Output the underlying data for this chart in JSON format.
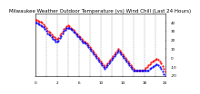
{
  "title": "Milwaukee Weather Outdoor Temperature (vs) Wind Chill (Last 24 Hours)",
  "bg_color": "#ffffff",
  "plot_bg": "#ffffff",
  "grid_color": "#888888",
  "ylim": [
    -20,
    50
  ],
  "yticks": [
    40,
    30,
    20,
    10,
    0,
    -10,
    -20
  ],
  "ytick_labels": [
    "40",
    "30",
    "20",
    "10",
    "0",
    "-10",
    "-20"
  ],
  "temp_color": "#ff0000",
  "chill_color": "#0000ff",
  "title_fontsize": 4.0,
  "axis_fontsize": 3.0,
  "marker_size": 1.2,
  "line_width": 0.5,
  "temp_data_x": [
    0,
    1,
    2,
    3,
    4,
    5,
    6,
    7,
    8,
    9,
    10,
    11,
    12,
    13,
    14,
    15,
    16,
    17,
    18,
    19,
    20,
    21,
    22,
    23,
    24,
    25,
    26,
    27,
    28,
    29,
    30,
    31,
    32,
    33,
    34,
    35,
    36,
    37,
    38,
    39,
    40,
    41,
    42,
    43,
    44,
    45,
    46,
    47,
    48,
    49,
    50,
    51,
    52,
    53,
    54,
    55,
    56,
    57,
    58,
    59,
    60,
    61,
    62,
    63,
    64,
    65,
    66,
    67,
    68,
    69,
    70,
    71,
    72,
    73,
    74,
    75,
    76,
    77,
    78,
    79,
    80,
    81,
    82,
    83,
    84,
    85,
    86,
    87,
    88,
    89,
    90,
    91,
    92,
    93,
    94,
    95
  ],
  "temp_data_y": [
    43,
    43,
    42,
    41,
    41,
    40,
    38,
    36,
    34,
    31,
    30,
    29,
    27,
    25,
    24,
    22,
    22,
    23,
    26,
    28,
    30,
    33,
    34,
    36,
    37,
    36,
    34,
    33,
    32,
    30,
    28,
    27,
    25,
    24,
    22,
    20,
    19,
    18,
    16,
    14,
    12,
    10,
    8,
    6,
    4,
    2,
    0,
    -2,
    -4,
    -6,
    -8,
    -10,
    -8,
    -6,
    -4,
    -2,
    0,
    2,
    4,
    6,
    8,
    10,
    8,
    6,
    4,
    2,
    0,
    -2,
    -4,
    -6,
    -8,
    -10,
    -12,
    -14,
    -14,
    -14,
    -14,
    -14,
    -14,
    -14,
    -13,
    -11,
    -10,
    -8,
    -7,
    -5,
    -4,
    -3,
    -2,
    -1,
    -2,
    -4,
    -6,
    -9,
    -12,
    -15
  ],
  "chill_data_x": [
    0,
    1,
    2,
    3,
    4,
    5,
    6,
    7,
    8,
    9,
    10,
    11,
    12,
    13,
    14,
    15,
    16,
    17,
    18,
    19,
    20,
    21,
    22,
    23,
    24,
    25,
    26,
    27,
    28,
    29,
    30,
    31,
    32,
    33,
    34,
    35,
    36,
    37,
    38,
    39,
    40,
    41,
    42,
    43,
    44,
    45,
    46,
    47,
    48,
    49,
    50,
    51,
    52,
    53,
    54,
    55,
    56,
    57,
    58,
    59,
    60,
    61,
    62,
    63,
    64,
    65,
    66,
    67,
    68,
    69,
    70,
    71,
    72,
    73,
    74,
    75,
    76,
    77,
    78,
    79,
    80,
    81,
    82,
    83,
    84,
    85,
    86,
    87,
    88,
    89,
    90,
    91,
    92,
    93,
    94,
    95
  ],
  "chill_data_y": [
    40,
    40,
    39,
    38,
    37,
    36,
    35,
    33,
    31,
    28,
    27,
    26,
    24,
    22,
    21,
    19,
    19,
    20,
    23,
    25,
    28,
    31,
    32,
    34,
    34,
    34,
    33,
    32,
    30,
    29,
    27,
    25,
    24,
    22,
    20,
    18,
    17,
    16,
    14,
    12,
    10,
    8,
    6,
    4,
    2,
    0,
    -2,
    -4,
    -6,
    -8,
    -10,
    -12,
    -10,
    -8,
    -6,
    -4,
    -2,
    0,
    2,
    4,
    6,
    8,
    6,
    4,
    2,
    0,
    -2,
    -4,
    -6,
    -8,
    -10,
    -12,
    -14,
    -14,
    -14,
    -14,
    -14,
    -14,
    -14,
    -14,
    -14,
    -14,
    -14,
    -14,
    -12,
    -11,
    -10,
    -9,
    -8,
    -7,
    -8,
    -10,
    -12,
    -15,
    -18,
    -21
  ],
  "xlim": [
    0,
    95
  ],
  "x_tick_positions": [
    0,
    8,
    16,
    24,
    32,
    40,
    48,
    56,
    64,
    72,
    80,
    88,
    95
  ],
  "x_tick_labels": [
    "0",
    "",
    "2",
    "",
    "6",
    "",
    "10",
    "",
    "14",
    "",
    "18",
    "",
    "24"
  ]
}
